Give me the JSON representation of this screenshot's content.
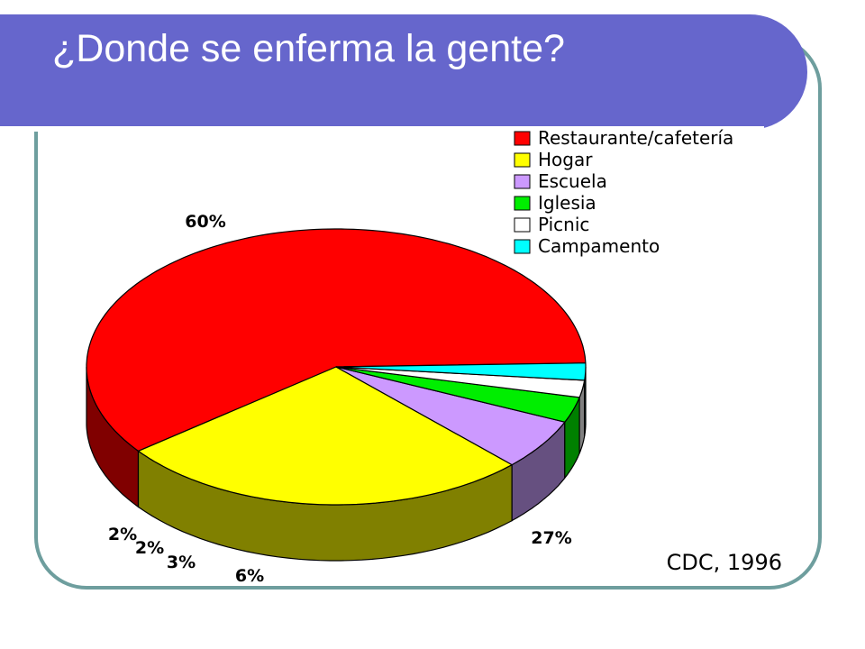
{
  "slide": {
    "title": "¿Donde se enferma la gente?",
    "source": "CDC, 1996"
  },
  "chart_data": {
    "type": "pie",
    "categories": [
      "Restaurante/cafetería",
      "Hogar",
      "Escuela",
      "Iglesia",
      "Picnic",
      "Campamento"
    ],
    "values": [
      60,
      27,
      6,
      3,
      2,
      2
    ],
    "labels": [
      "60%",
      "27%",
      "6%",
      "3%",
      "2%",
      "2%"
    ],
    "colors": [
      "#ff0000",
      "#ffff00",
      "#cc99ff",
      "#00ee00",
      "#ffffff",
      "#00ffff"
    ],
    "side_colors": [
      "#800000",
      "#808000",
      "#665080",
      "#008000",
      "#808080",
      "#008080"
    ],
    "legend_position": "top-right",
    "three_d": true
  }
}
